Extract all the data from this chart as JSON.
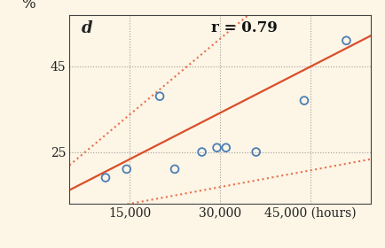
{
  "background_color": "#fdf5e6",
  "panel_label": "d",
  "r_label": "r = 0.79",
  "ylabel": "%",
  "xticks": [
    15000,
    30000,
    45000
  ],
  "xtick_labels": [
    "15,000",
    "30,000",
    "45,000 (hours)"
  ],
  "yticks": [
    25,
    45
  ],
  "xlim": [
    5000,
    55000
  ],
  "ylim": [
    13,
    57
  ],
  "scatter_x": [
    11000,
    14500,
    20000,
    22500,
    27000,
    29500,
    31000,
    36000,
    44000,
    51000
  ],
  "scatter_y": [
    19,
    21,
    38,
    21,
    25,
    26,
    26,
    25,
    37,
    51
  ],
  "scatter_color": "#4a7fb5",
  "regression_color": "#d94f2a",
  "ci_color": "#e8704a",
  "regression_slope": 0.00072,
  "regression_intercept": 12.5,
  "ci_slope_upper": 0.00118,
  "ci_intercept_upper": 16.0,
  "ci_slope_lower": 0.00026,
  "ci_intercept_lower": 9.0,
  "grid_color": "#666666",
  "tick_fontsize": 10,
  "annotation_fontsize": 12
}
